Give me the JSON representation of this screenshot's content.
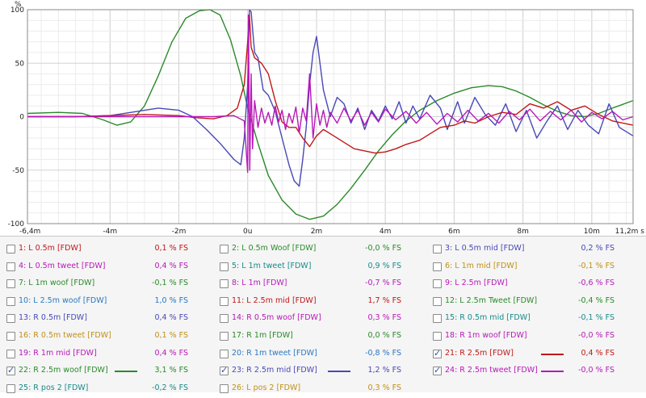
{
  "chart_data": {
    "type": "line",
    "ylabel": "%",
    "xlabel": "",
    "xlim": [
      -6.4,
      11.2
    ],
    "ylim": [
      -100,
      100
    ],
    "grid": true,
    "x_unit": "ms",
    "x_ticks": [
      {
        "value": -6.4,
        "label": "-6,4m"
      },
      {
        "value": -4,
        "label": "-4m"
      },
      {
        "value": -2,
        "label": "-2m"
      },
      {
        "value": 0,
        "label": "0u"
      },
      {
        "value": 2,
        "label": "2m"
      },
      {
        "value": 4,
        "label": "4m"
      },
      {
        "value": 6,
        "label": "6m"
      },
      {
        "value": 8,
        "label": "8m"
      },
      {
        "value": 10,
        "label": "10m"
      },
      {
        "value": 11.2,
        "label": "11,2m s"
      }
    ],
    "y_ticks": [
      {
        "value": 100,
        "label": "100"
      },
      {
        "value": 50,
        "label": "50"
      },
      {
        "value": 0,
        "label": "0"
      },
      {
        "value": -50,
        "label": "-50"
      },
      {
        "value": -100,
        "label": "-100"
      }
    ],
    "series": [
      {
        "name": "22: R 2.5m woof [FDW]",
        "color": "#2a8a2a",
        "x": [
          -6.4,
          -5.5,
          -4.8,
          -4.2,
          -3.8,
          -3.4,
          -3.0,
          -2.6,
          -2.2,
          -1.8,
          -1.4,
          -1.1,
          -0.8,
          -0.5,
          -0.2,
          0.0,
          0.3,
          0.6,
          1.0,
          1.4,
          1.8,
          2.2,
          2.6,
          3.0,
          3.4,
          3.8,
          4.2,
          4.6,
          5.0,
          5.5,
          6.0,
          6.5,
          7.0,
          7.4,
          7.8,
          8.2,
          8.6,
          9.0,
          9.4,
          9.8,
          10.2,
          10.6,
          11.2
        ],
        "y": [
          3,
          4,
          3,
          -3,
          -8,
          -5,
          10,
          38,
          70,
          92,
          99,
          100,
          95,
          72,
          38,
          8,
          -25,
          -55,
          -78,
          -91,
          -96,
          -93,
          -82,
          -67,
          -50,
          -32,
          -17,
          -4,
          6,
          15,
          22,
          27,
          29,
          28,
          24,
          18,
          11,
          5,
          1,
          0,
          3,
          8,
          15
        ]
      },
      {
        "name": "23: R 2.5m mid [FDW]",
        "color": "#4848b8",
        "x": [
          -6.4,
          -5.0,
          -4.0,
          -3.2,
          -2.6,
          -2.0,
          -1.6,
          -1.2,
          -0.8,
          -0.4,
          -0.2,
          -0.1,
          0.0,
          0.05,
          0.1,
          0.2,
          0.3,
          0.45,
          0.6,
          0.8,
          1.0,
          1.2,
          1.35,
          1.5,
          1.6,
          1.7,
          1.8,
          1.9,
          2.0,
          2.2,
          2.4,
          2.6,
          2.8,
          3.0,
          3.2,
          3.4,
          3.6,
          3.8,
          4.0,
          4.2,
          4.4,
          4.6,
          4.8,
          5.0,
          5.3,
          5.6,
          5.8,
          6.1,
          6.3,
          6.6,
          6.9,
          7.2,
          7.5,
          7.8,
          8.1,
          8.4,
          8.7,
          9.0,
          9.3,
          9.6,
          9.9,
          10.2,
          10.5,
          10.8,
          11.2
        ],
        "y": [
          0,
          0,
          1,
          5,
          8,
          6,
          0,
          -12,
          -25,
          -40,
          -45,
          -20,
          30,
          100,
          98,
          60,
          55,
          25,
          20,
          5,
          -20,
          -45,
          -60,
          -65,
          -40,
          -10,
          30,
          60,
          75,
          25,
          0,
          18,
          12,
          -6,
          8,
          -12,
          6,
          -4,
          10,
          -2,
          14,
          -6,
          10,
          -2,
          20,
          8,
          -12,
          14,
          -6,
          18,
          2,
          -8,
          12,
          -14,
          6,
          -20,
          -4,
          10,
          -12,
          6,
          -8,
          -16,
          12,
          -10,
          -18
        ]
      },
      {
        "name": "21: R 2.5m [FDW]",
        "color": "#c01818",
        "x": [
          -6.4,
          -5.0,
          -4.0,
          -3.0,
          -2.0,
          -1.5,
          -1.0,
          -0.6,
          -0.3,
          -0.1,
          0.0,
          0.05,
          0.1,
          0.2,
          0.4,
          0.6,
          0.8,
          1.0,
          1.2,
          1.4,
          1.6,
          1.8,
          2.0,
          2.2,
          2.5,
          2.8,
          3.1,
          3.4,
          3.7,
          4.0,
          4.3,
          4.6,
          5.0,
          5.3,
          5.6,
          6.0,
          6.3,
          6.6,
          7.0,
          7.4,
          7.8,
          8.2,
          8.6,
          9.0,
          9.4,
          9.8,
          10.2,
          10.6,
          11.2
        ],
        "y": [
          0,
          0,
          1,
          2,
          1,
          -1,
          -2,
          1,
          8,
          30,
          70,
          95,
          65,
          55,
          50,
          40,
          15,
          -5,
          -10,
          -10,
          -20,
          -28,
          -18,
          -12,
          -18,
          -24,
          -30,
          -32,
          -34,
          -33,
          -30,
          -26,
          -22,
          -16,
          -10,
          -8,
          -4,
          -6,
          0,
          4,
          2,
          12,
          8,
          14,
          6,
          10,
          2,
          -4,
          -8
        ]
      },
      {
        "name": "24: R 2.5m tweet [FDW]",
        "color": "#b818b8",
        "x": [
          -6.4,
          -4.0,
          -2.0,
          -1.0,
          -0.4,
          -0.1,
          0.0,
          0.02,
          0.06,
          0.1,
          0.14,
          0.2,
          0.3,
          0.4,
          0.5,
          0.6,
          0.7,
          0.8,
          0.9,
          1.0,
          1.1,
          1.2,
          1.3,
          1.4,
          1.5,
          1.6,
          1.7,
          1.8,
          1.9,
          2.0,
          2.1,
          2.2,
          2.3,
          2.4,
          2.6,
          2.8,
          3.0,
          3.2,
          3.4,
          3.6,
          3.8,
          4.0,
          4.3,
          4.6,
          4.9,
          5.2,
          5.5,
          5.8,
          6.1,
          6.4,
          6.7,
          7.0,
          7.3,
          7.6,
          7.9,
          8.2,
          8.5,
          8.8,
          9.1,
          9.4,
          9.7,
          10.0,
          10.3,
          10.6,
          10.9,
          11.2
        ],
        "y": [
          0,
          0,
          0,
          0,
          1,
          -4,
          -52,
          95,
          -50,
          40,
          -30,
          15,
          -10,
          8,
          -6,
          4,
          -8,
          10,
          -5,
          6,
          -12,
          3,
          -6,
          9,
          -15,
          8,
          -4,
          40,
          -20,
          12,
          -8,
          6,
          -10,
          4,
          -6,
          8,
          -4,
          6,
          -8,
          4,
          -5,
          7,
          -3,
          5,
          -6,
          4,
          -7,
          3,
          -5,
          6,
          -4,
          3,
          -6,
          5,
          -3,
          7,
          -4,
          5,
          -3,
          6,
          -5,
          4,
          -2,
          5,
          -3,
          0
        ]
      }
    ]
  },
  "legend": {
    "columns": [
      [
        {
          "label": "1: L 0.5m [FDW]",
          "value": "0,1 % FS",
          "checked": false,
          "color": "#c01818"
        },
        {
          "label": "4: L 0.5m tweet [FDW]",
          "value": "0,4 % FS",
          "checked": false,
          "color": "#b818b8"
        },
        {
          "label": "7: L 1m woof [FDW]",
          "value": "-0,1 % FS",
          "checked": false,
          "color": "#2a8a2a"
        },
        {
          "label": "10: L 2.5m woof [FDW]",
          "value": "1,0 % FS",
          "checked": false,
          "color": "#2a78c0"
        },
        {
          "label": "13: R 0.5m [FDW]",
          "value": "0,4 % FS",
          "checked": false,
          "color": "#4848b8"
        },
        {
          "label": "16: R 0.5m tweet [FDW]",
          "value": "0,1 % FS",
          "checked": false,
          "color": "#c09018"
        },
        {
          "label": "19: R 1m mid [FDW]",
          "value": "0,4 % FS",
          "checked": false,
          "color": "#b818b8"
        },
        {
          "label": "22: R 2.5m woof [FDW]",
          "value": "3,1 % FS",
          "checked": true,
          "color": "#2a8a2a",
          "swatch": true
        },
        {
          "label": "25: R pos 2 [FDW]",
          "value": "-0,2 % FS",
          "checked": false,
          "color": "#188a8a"
        }
      ],
      [
        {
          "label": "2: L 0.5m Woof [FDW]",
          "value": "-0,0 % FS",
          "checked": false,
          "color": "#2a8a2a"
        },
        {
          "label": "5: L 1m tweet [FDW]",
          "value": "0,9 % FS",
          "checked": false,
          "color": "#188a8a"
        },
        {
          "label": "8: L 1m [FDW]",
          "value": "-0,7 % FS",
          "checked": false,
          "color": "#b818b8"
        },
        {
          "label": "11: L 2.5m mid [FDW]",
          "value": "1,7 % FS",
          "checked": false,
          "color": "#c01818"
        },
        {
          "label": "14: R 0.5m woof [FDW]",
          "value": "0,3 % FS",
          "checked": false,
          "color": "#b818b8"
        },
        {
          "label": "17: R 1m [FDW]",
          "value": "0,0 % FS",
          "checked": false,
          "color": "#2a8a2a"
        },
        {
          "label": "20: R 1m tweet [FDW]",
          "value": "-0,8 % FS",
          "checked": false,
          "color": "#2a78c0"
        },
        {
          "label": "23: R 2.5m mid [FDW]",
          "value": "1,2 % FS",
          "checked": true,
          "color": "#4848b8",
          "swatch": true
        },
        {
          "label": "26: L pos 2 [FDW]",
          "value": "0,3 % FS",
          "checked": false,
          "color": "#c09018"
        }
      ],
      [
        {
          "label": "3: L 0.5m mid [FDW]",
          "value": "0,2 % FS",
          "checked": false,
          "color": "#4848b8"
        },
        {
          "label": "6: L 1m mid [FDW]",
          "value": "-0,1 % FS",
          "checked": false,
          "color": "#c09018"
        },
        {
          "label": "9: L  2.5m [FDW]",
          "value": "-0,6 % FS",
          "checked": false,
          "color": "#b818b8"
        },
        {
          "label": "12: L 2.5m Tweet [FDW]",
          "value": "-0,4 % FS",
          "checked": false,
          "color": "#2a8a2a"
        },
        {
          "label": "15: R 0.5m mid [FDW]",
          "value": "-0,1 % FS",
          "checked": false,
          "color": "#188a8a"
        },
        {
          "label": "18: R 1m woof [FDW]",
          "value": "-0,0 % FS",
          "checked": false,
          "color": "#b818b8"
        },
        {
          "label": "21: R 2.5m [FDW]",
          "value": "0,4 % FS",
          "checked": true,
          "color": "#c01818",
          "swatch": true
        },
        {
          "label": "24: R 2.5m tweet [FDW]",
          "value": "-0,0 % FS",
          "checked": true,
          "color": "#b818b8",
          "swatch": true
        }
      ]
    ]
  }
}
